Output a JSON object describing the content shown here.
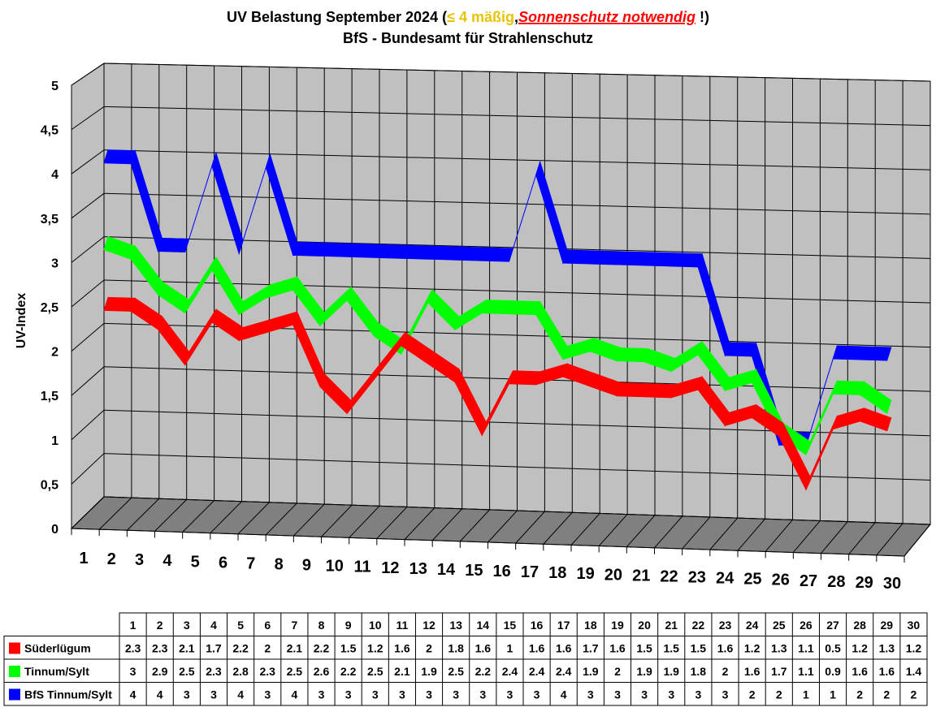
{
  "title": {
    "part1": "UV Belastung September 2024 (",
    "part2": "≤ 4 mäßig",
    "part3": ",",
    "part4": "Sonnenschutz notwendig",
    "part5": " !)",
    "subtitle": "BfS - Bundesamt für Strahlenschutz"
  },
  "colors": {
    "moderate": "#e8c400",
    "warning": "#ff0000",
    "wall": "#c0c0c0",
    "floor": "#808080",
    "grid": "#000000"
  },
  "chart_data": {
    "type": "line",
    "title": "UV Belastung September 2024",
    "subtitle": "BfS - Bundesamt für Strahlenschutz",
    "xlabel": "",
    "ylabel": "UV-Index",
    "ylim": [
      0,
      5
    ],
    "yticks": [
      "0",
      "0,5",
      "1",
      "1,5",
      "2",
      "2,5",
      "3",
      "3,5",
      "4",
      "4,5",
      "5"
    ],
    "categories": [
      "1",
      "2",
      "3",
      "4",
      "5",
      "6",
      "7",
      "8",
      "9",
      "10",
      "11",
      "12",
      "13",
      "14",
      "15",
      "16",
      "17",
      "18",
      "19",
      "20",
      "21",
      "22",
      "23",
      "24",
      "25",
      "26",
      "27",
      "28",
      "29",
      "30"
    ],
    "grid": true,
    "series": [
      {
        "name": "Süderlügum",
        "color": "#ff0000",
        "values": [
          2.3,
          2.3,
          2.1,
          1.7,
          2.2,
          2,
          2.1,
          2.2,
          1.5,
          1.2,
          1.6,
          2,
          1.8,
          1.6,
          1,
          1.6,
          1.6,
          1.7,
          1.6,
          1.5,
          1.5,
          1.5,
          1.6,
          1.2,
          1.3,
          1.1,
          0.5,
          1.2,
          1.3,
          1.2
        ]
      },
      {
        "name": "Tinnum/Sylt",
        "color": "#00ff00",
        "values": [
          3,
          2.9,
          2.5,
          2.3,
          2.8,
          2.3,
          2.5,
          2.6,
          2.2,
          2.5,
          2.1,
          1.9,
          2.5,
          2.2,
          2.4,
          2.4,
          2.4,
          1.9,
          2,
          1.9,
          1.9,
          1.8,
          2,
          1.6,
          1.7,
          1.1,
          0.9,
          1.6,
          1.6,
          1.4
        ]
      },
      {
        "name": "BfS Tinnum/Sylt",
        "color": "#0000ff",
        "values": [
          4,
          4,
          3,
          3,
          4,
          3,
          4,
          3,
          3,
          3,
          3,
          3,
          3,
          3,
          3,
          3,
          4,
          3,
          3,
          3,
          3,
          3,
          3,
          2,
          2,
          1,
          1,
          2,
          2,
          2
        ]
      }
    ]
  }
}
